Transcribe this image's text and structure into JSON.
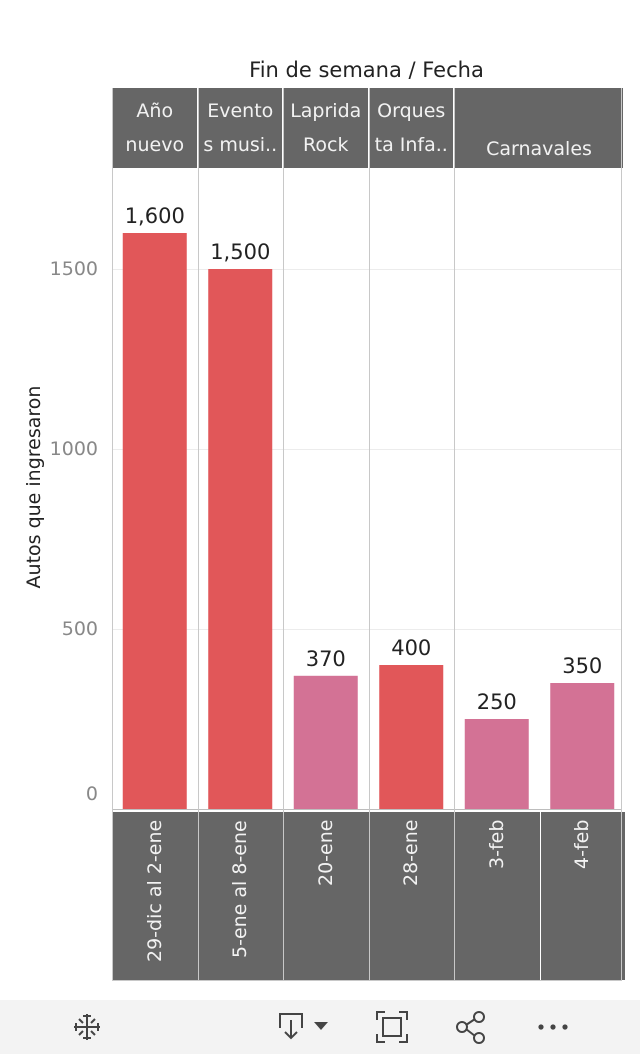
{
  "chart_data": {
    "type": "bar",
    "title": "Fin de semana  /  Fecha",
    "ylabel": "Autos que ingresaron",
    "ylim": [
      0,
      1700
    ],
    "yticks": [
      0,
      500,
      1000,
      1500
    ],
    "ytick_labels": [
      "0",
      "500",
      "1000",
      "1500"
    ],
    "grid": true,
    "groups": [
      {
        "label": "Año\nnuevo",
        "categories": [
          "29-dic al 2-ene"
        ],
        "values": [
          1600
        ],
        "value_labels": [
          "1,600"
        ],
        "colors": [
          "#e15759"
        ]
      },
      {
        "label": "Evento\ns musi..",
        "categories": [
          "5-ene al 8-ene"
        ],
        "values": [
          1500
        ],
        "value_labels": [
          "1,500"
        ],
        "colors": [
          "#e15759"
        ]
      },
      {
        "label": "Laprida\nRock",
        "categories": [
          "20-ene"
        ],
        "values": [
          370
        ],
        "value_labels": [
          "370"
        ],
        "colors": [
          "#d37295"
        ]
      },
      {
        "label": "Orques\nta Infa..",
        "categories": [
          "28-ene"
        ],
        "values": [
          400
        ],
        "value_labels": [
          "400"
        ],
        "colors": [
          "#e15759"
        ]
      },
      {
        "label": "Carnavales",
        "categories": [
          "3-feb",
          "4-feb"
        ],
        "values": [
          250,
          350
        ],
        "value_labels": [
          "250",
          "350"
        ],
        "colors": [
          "#d37295",
          "#d37295"
        ]
      }
    ]
  },
  "toolbar": {
    "icons": [
      "tableau-logo-icon",
      "download-icon",
      "fullscreen-icon",
      "share-icon",
      "more-icon"
    ]
  }
}
